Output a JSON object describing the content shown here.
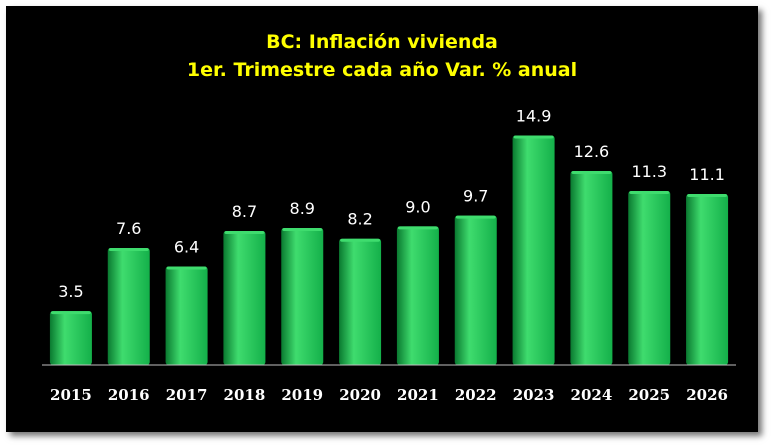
{
  "chart_data": {
    "type": "bar",
    "title": "BC: Inflación vivienda",
    "subtitle": "1er. Trimestre cada año Var. % anual",
    "categories": [
      "2015",
      "2016",
      "2017",
      "2018",
      "2019",
      "2020",
      "2021",
      "2022",
      "2023",
      "2024",
      "2025",
      "2026"
    ],
    "values": [
      3.5,
      7.6,
      6.4,
      8.7,
      8.9,
      8.2,
      9.0,
      9.7,
      14.9,
      12.6,
      11.3,
      11.1
    ],
    "value_labels": [
      "3.5",
      "7.6",
      "6.4",
      "8.7",
      "8.9",
      "8.2",
      "9.0",
      "9.7",
      "14.9",
      "12.6",
      "11.3",
      "11.1"
    ],
    "xlabel": "",
    "ylabel": "",
    "ylim": [
      0,
      16
    ],
    "grid": false,
    "legend": "none",
    "colors": {
      "background": "#000000",
      "bar": "#14b04a",
      "bar_highlight": "#3fdc6e",
      "bar_shadow": "#0a7a30",
      "title": "#ffff00",
      "labels": "#ffffff",
      "axis": "#bfbfbf"
    }
  }
}
